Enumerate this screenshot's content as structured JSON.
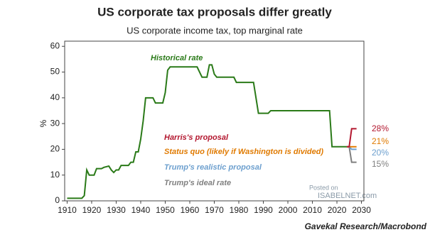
{
  "chart_data": {
    "type": "line",
    "title": "US corporate tax proposals differ greatly",
    "subtitle": "US corporate income tax, top marginal rate",
    "y_label": "%",
    "source": "Gavekal Research/Macrobond",
    "watermark": [
      "Posted on",
      "ISABELNET.com"
    ],
    "xlim": [
      1909,
      2031
    ],
    "xticks": [
      1910,
      1920,
      1930,
      1940,
      1950,
      1960,
      1970,
      1980,
      1990,
      2000,
      2010,
      2020,
      2030
    ],
    "ylim": [
      0,
      62
    ],
    "yticks": [
      0,
      10,
      20,
      30,
      40,
      50,
      60
    ],
    "series": [
      {
        "name": "Historical rate",
        "color": "#2a7a18",
        "x": [
          1910,
          1916,
          1917,
          1918,
          1919,
          1921,
          1922,
          1924,
          1925,
          1927,
          1928,
          1929,
          1930,
          1931,
          1932,
          1935,
          1936,
          1937,
          1938,
          1939,
          1940,
          1941,
          1942,
          1945,
          1946,
          1949,
          1950,
          1951,
          1952,
          1963,
          1964,
          1965,
          1967,
          1968,
          1969,
          1970,
          1971,
          1978,
          1979,
          1986,
          1987,
          1988,
          1992,
          1993,
          2017,
          2018,
          2024
        ],
        "values": [
          1,
          1,
          2,
          12,
          10,
          10,
          12.5,
          12.5,
          13,
          13.5,
          12,
          11,
          12,
          12,
          13.75,
          13.75,
          15,
          15,
          19,
          19,
          24,
          31,
          40,
          40,
          38,
          38,
          42,
          50.75,
          52,
          52,
          50,
          48,
          48,
          52.8,
          52.8,
          49.2,
          48,
          48,
          46,
          46,
          40,
          34,
          34,
          35,
          35,
          21,
          21
        ]
      },
      {
        "name": "Harris's proposal",
        "color": "#b3172f",
        "x": [
          2024,
          2025,
          2026,
          2028
        ],
        "values": [
          21,
          21,
          28,
          28
        ],
        "end_label": "28%"
      },
      {
        "name": "Status quo (likely if Washington is divided)",
        "color": "#e07a00",
        "x": [
          2024,
          2028
        ],
        "values": [
          21,
          21
        ],
        "end_label": "21%"
      },
      {
        "name": "Trump's realistic proposal",
        "color": "#6c9fce",
        "x": [
          2024,
          2025,
          2026,
          2028
        ],
        "values": [
          21,
          21,
          20,
          20
        ],
        "end_label": "20%"
      },
      {
        "name": "Trump's ideal rate",
        "color": "#7f7f7f",
        "x": [
          2024,
          2025,
          2026,
          2028
        ],
        "values": [
          21,
          21,
          15,
          15
        ],
        "end_label": "15%"
      }
    ]
  }
}
